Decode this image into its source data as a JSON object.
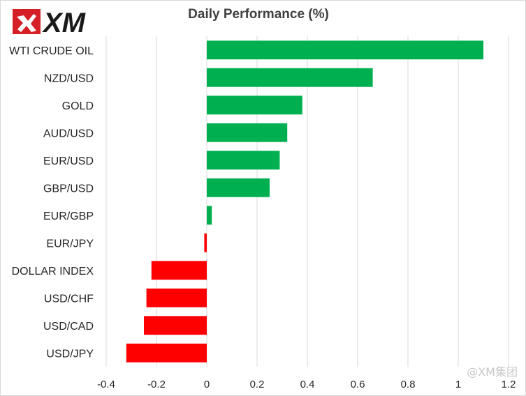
{
  "brand": {
    "logo_text": "XM",
    "logo_colors": {
      "red": "#d51f26",
      "black": "#1a1a1a"
    }
  },
  "watermark": "@XM集团",
  "chart_data": {
    "type": "bar",
    "orientation": "horizontal",
    "title": "Daily Performance  (%)",
    "xlabel": "",
    "ylabel": "",
    "categories": [
      "WTI CRUDE OIL",
      "NZD/USD",
      "GOLD",
      "AUD/USD",
      "EUR/USD",
      "GBP/USD",
      "EUR/GBP",
      "EUR/JPY",
      "DOLLAR INDEX",
      "USD/CHF",
      "USD/CAD",
      "USD/JPY"
    ],
    "values": [
      1.1,
      0.66,
      0.38,
      0.32,
      0.29,
      0.25,
      0.02,
      -0.01,
      -0.22,
      -0.24,
      -0.25,
      -0.32
    ],
    "xlim": [
      -0.4,
      1.2
    ],
    "xticks": [
      -0.4,
      -0.2,
      0,
      0.2,
      0.4,
      0.6,
      0.8,
      1,
      1.2
    ],
    "xtick_labels": [
      "-0.4",
      "-0.2",
      "0",
      "0.2",
      "0.4",
      "0.6",
      "0.8",
      "1",
      "1.2"
    ],
    "grid": "vertical",
    "legend": "none",
    "colors": {
      "positive": "#00b050",
      "negative": "#ff0000",
      "grid": "#d9d9d9"
    }
  }
}
